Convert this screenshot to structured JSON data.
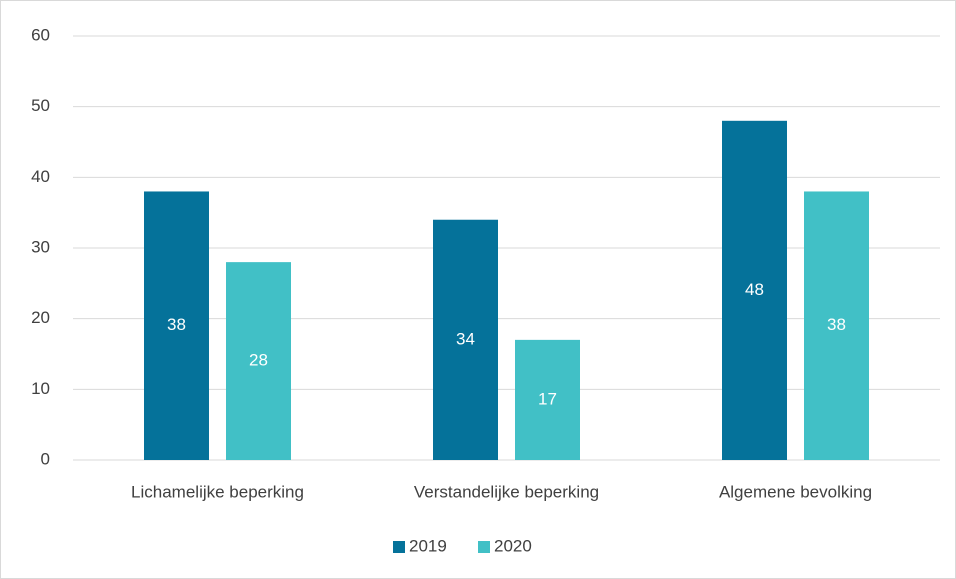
{
  "chart_data": {
    "type": "bar",
    "categories": [
      "Lichamelijke beperking",
      "Verstandelijke beperking",
      "Algemene bevolking"
    ],
    "series": [
      {
        "name": "2019",
        "color": "#05729a",
        "values": [
          38,
          34,
          48
        ]
      },
      {
        "name": "2020",
        "color": "#41c0c6",
        "values": [
          28,
          17,
          38
        ]
      }
    ],
    "ylim": [
      0,
      60
    ],
    "yticks": [
      0,
      10,
      20,
      30,
      40,
      50,
      60
    ],
    "grid": true,
    "legend": "bottom"
  }
}
